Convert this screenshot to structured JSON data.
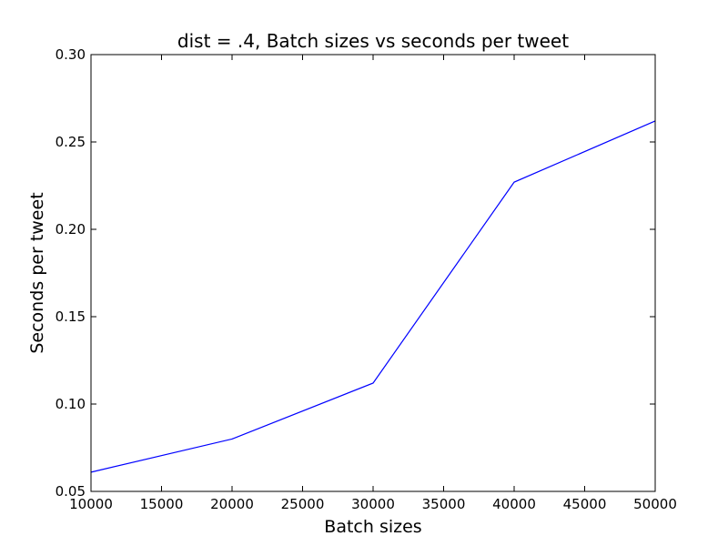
{
  "chart_data": {
    "type": "line",
    "title": "dist = .4, Batch sizes vs seconds per tweet",
    "xlabel": "Batch sizes",
    "ylabel": "Seconds per tweet",
    "xlim": [
      10000,
      50000
    ],
    "ylim": [
      0.05,
      0.3
    ],
    "x_ticks": [
      10000,
      15000,
      20000,
      25000,
      30000,
      35000,
      40000,
      45000,
      50000
    ],
    "x_tick_labels": [
      "10000",
      "15000",
      "20000",
      "25000",
      "30000",
      "35000",
      "40000",
      "45000",
      "50000"
    ],
    "y_ticks": [
      0.05,
      0.1,
      0.15,
      0.2,
      0.25,
      0.3
    ],
    "y_tick_labels": [
      "0.05",
      "0.10",
      "0.15",
      "0.20",
      "0.25",
      "0.30"
    ],
    "grid": false,
    "series": [
      {
        "color": "#0000ff",
        "x": [
          10000,
          20000,
          30000,
          40000,
          50000
        ],
        "y": [
          0.061,
          0.08,
          0.112,
          0.227,
          0.262
        ]
      }
    ]
  }
}
